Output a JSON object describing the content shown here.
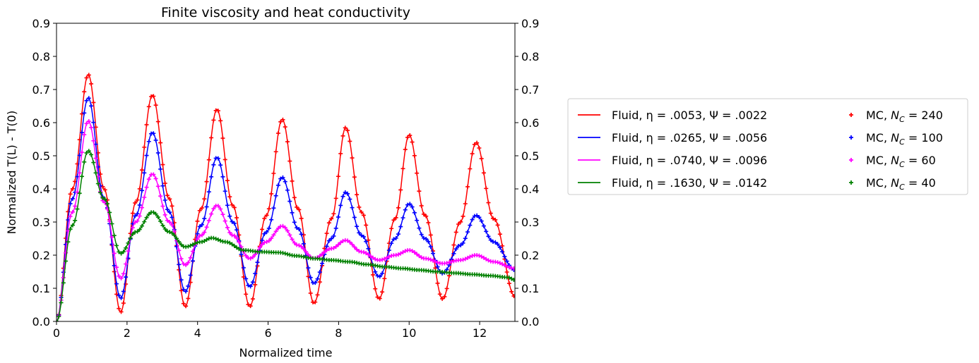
{
  "chart_data": {
    "type": "line",
    "title": "Finite viscosity and heat conductivity",
    "xlabel": "Normalized time",
    "ylabel": "Normalized T(L) - T(0)",
    "xlim": [
      0,
      13
    ],
    "ylim": [
      0.0,
      0.9
    ],
    "xticks": [
      0,
      2,
      4,
      6,
      8,
      10,
      12
    ],
    "xtick_labels": [
      "0",
      "2",
      "4",
      "6",
      "8",
      "10",
      "12"
    ],
    "yticks": [
      0.0,
      0.1,
      0.2,
      0.3,
      0.4,
      0.5,
      0.6,
      0.7,
      0.8,
      0.9
    ],
    "ytick_labels": [
      "0.0",
      "0.1",
      "0.2",
      "0.3",
      "0.4",
      "0.5",
      "0.6",
      "0.7",
      "0.8",
      "0.9"
    ],
    "right_axis_ticks": true,
    "grid": false,
    "legend_position": "outside-right",
    "series": [
      {
        "name": "Fluid, η = .0053, Ψ = .0022",
        "mc_name": "MC, N_C = 240",
        "color": "#ff0000",
        "x": [
          0,
          0.45,
          0.9,
          1.35,
          1.82,
          2.25,
          2.72,
          3.2,
          3.65,
          4.1,
          4.55,
          5.0,
          5.48,
          5.95,
          6.4,
          6.85,
          7.3,
          7.8,
          8.2,
          8.65,
          9.15,
          9.6,
          10.0,
          10.45,
          10.95,
          11.45,
          11.9,
          12.4,
          13.0
        ],
        "values": [
          0.0,
          0.4,
          0.745,
          0.4,
          0.028,
          0.36,
          0.683,
          0.37,
          0.045,
          0.34,
          0.64,
          0.35,
          0.045,
          0.32,
          0.61,
          0.34,
          0.055,
          0.31,
          0.585,
          0.33,
          0.068,
          0.31,
          0.563,
          0.32,
          0.068,
          0.3,
          0.54,
          0.31,
          0.075
        ]
      },
      {
        "name": "Fluid, η = .0265, Ψ = .0056",
        "mc_name": "MC, N_C = 100",
        "color": "#0000ff",
        "x": [
          0,
          0.45,
          0.9,
          1.35,
          1.82,
          2.25,
          2.72,
          3.2,
          3.65,
          4.1,
          4.55,
          5.0,
          5.48,
          5.95,
          6.4,
          6.85,
          7.3,
          7.8,
          8.2,
          8.65,
          9.15,
          9.6,
          10.0,
          10.45,
          10.95,
          11.45,
          11.9,
          12.4,
          13.0
        ],
        "values": [
          0.0,
          0.37,
          0.675,
          0.37,
          0.07,
          0.32,
          0.57,
          0.33,
          0.09,
          0.29,
          0.495,
          0.3,
          0.105,
          0.27,
          0.435,
          0.28,
          0.115,
          0.25,
          0.39,
          0.26,
          0.135,
          0.25,
          0.355,
          0.25,
          0.145,
          0.23,
          0.32,
          0.24,
          0.155
        ]
      },
      {
        "name": "Fluid, η = .0740, Ψ = .0096",
        "mc_name": "MC, N_C = 60",
        "color": "#ff00ff",
        "x": [
          0,
          0.45,
          0.9,
          1.35,
          1.82,
          2.25,
          2.72,
          3.2,
          3.65,
          4.1,
          4.55,
          5.0,
          5.48,
          5.95,
          6.4,
          6.85,
          7.3,
          7.8,
          8.2,
          8.65,
          9.15,
          9.6,
          10.0,
          10.45,
          10.95,
          11.45,
          11.9,
          12.4,
          13.0
        ],
        "values": [
          0.0,
          0.33,
          0.605,
          0.36,
          0.13,
          0.3,
          0.445,
          0.3,
          0.17,
          0.26,
          0.35,
          0.26,
          0.19,
          0.24,
          0.288,
          0.23,
          0.19,
          0.22,
          0.245,
          0.21,
          0.185,
          0.2,
          0.215,
          0.19,
          0.175,
          0.185,
          0.2,
          0.18,
          0.16
        ]
      },
      {
        "name": "Fluid, η = .1630, Ψ = .0142",
        "mc_name": "MC, N_C = 40",
        "color": "#008000",
        "x": [
          0,
          0.45,
          0.9,
          1.35,
          1.82,
          2.25,
          2.72,
          3.2,
          3.65,
          4.1,
          4.4,
          4.8,
          5.3,
          5.8,
          6.3,
          6.8,
          7.3,
          7.8,
          8.3,
          8.8,
          9.3,
          9.8,
          10.3,
          10.8,
          11.3,
          11.8,
          12.3,
          12.8,
          13.0
        ],
        "values": [
          0.0,
          0.29,
          0.515,
          0.37,
          0.205,
          0.27,
          0.33,
          0.27,
          0.225,
          0.24,
          0.252,
          0.24,
          0.215,
          0.21,
          0.208,
          0.198,
          0.19,
          0.185,
          0.18,
          0.172,
          0.165,
          0.16,
          0.155,
          0.15,
          0.146,
          0.142,
          0.138,
          0.133,
          0.125
        ]
      }
    ]
  }
}
